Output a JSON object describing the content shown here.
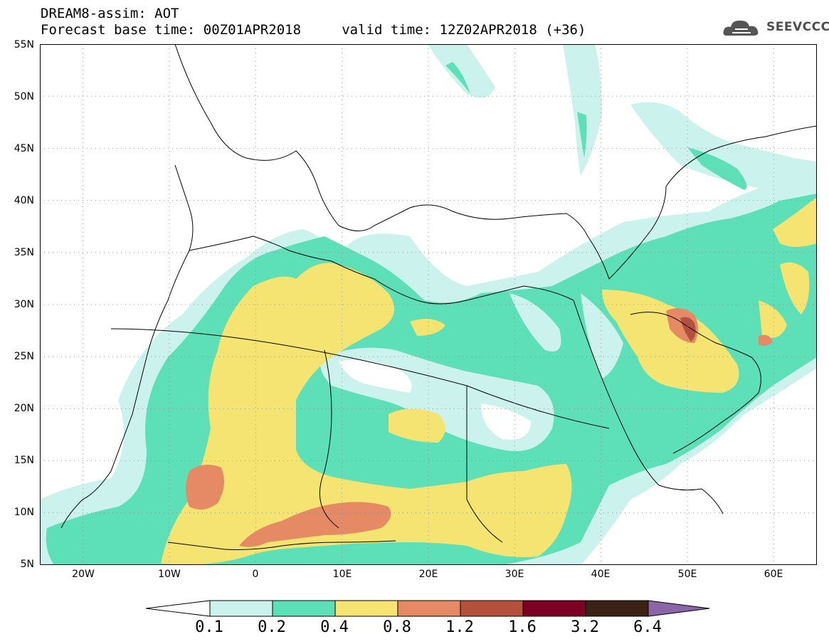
{
  "header": {
    "title_line1": "DREAM8-assim: AOT",
    "title_line2": "Forecast base time: 00Z01APR2018     valid time: 12Z02APR2018 (+36)"
  },
  "logo": {
    "text": "SEEVCCC",
    "icon": "cloud-logo-icon"
  },
  "map": {
    "projection": "lat-lon",
    "lon_range": [
      -25,
      65
    ],
    "lat_range": [
      5,
      55
    ],
    "lat_ticks": [
      "55N",
      "50N",
      "45N",
      "40N",
      "35N",
      "30N",
      "25N",
      "20N",
      "15N",
      "10N",
      "5N"
    ],
    "lon_ticks": [
      "20W",
      "10W",
      "0",
      "10E",
      "20E",
      "30E",
      "40E",
      "50E",
      "60E"
    ],
    "gridlines": "dotted"
  },
  "colorbar": {
    "labels": [
      "0.1",
      "0.2",
      "0.4",
      "0.8",
      "1.2",
      "1.6",
      "3.2",
      "6.4"
    ],
    "colors": {
      "c1": "#ccf2ee",
      "c2": "#5ddfb8",
      "c3": "#f5e471",
      "c4": "#e58a64",
      "c5": "#b3513d",
      "c6": "#7c0024",
      "c7": "#3b2116",
      "over": "#8c64a8",
      "under": "#ffffff"
    }
  }
}
